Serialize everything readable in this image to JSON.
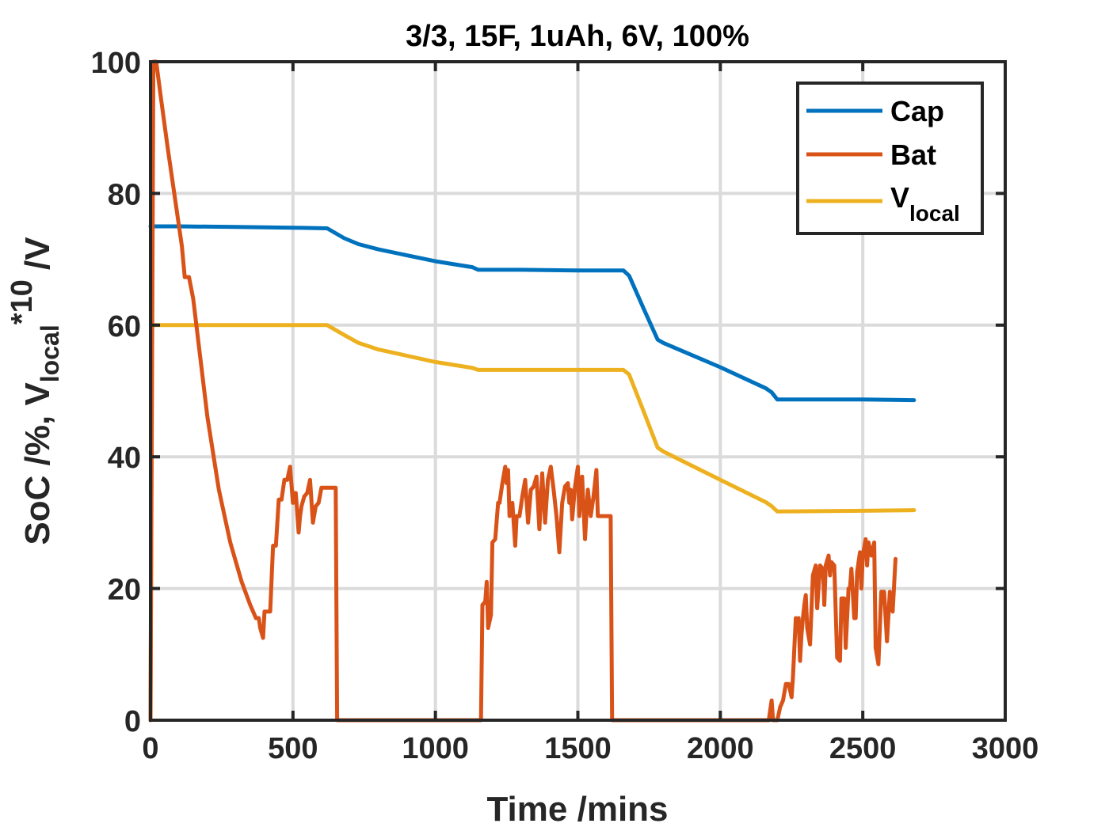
{
  "chart_data": {
    "type": "line",
    "title": "3/3, 15F, 1uAh, 6V, 100%",
    "xlabel": "Time /mins",
    "ylabel": {
      "part1": "SoC /%, V",
      "sub": "local",
      "sup": "*10",
      "part2": " /V"
    },
    "xlim": [
      0,
      3000
    ],
    "ylim": [
      0,
      100
    ],
    "xticks": [
      0,
      500,
      1000,
      1500,
      2000,
      2500,
      3000
    ],
    "yticks": [
      0,
      20,
      40,
      60,
      80,
      100
    ],
    "xtick_labels": [
      "0",
      "500",
      "1000",
      "1500",
      "2000",
      "2500",
      "3000"
    ],
    "ytick_labels": [
      "0",
      "20",
      "40",
      "60",
      "80",
      "100"
    ],
    "grid": true,
    "legend_position": "top-right",
    "series": [
      {
        "name": "Cap",
        "color": "#0072BD",
        "points": [
          [
            0,
            75
          ],
          [
            100,
            75
          ],
          [
            300,
            74.9
          ],
          [
            500,
            74.8
          ],
          [
            620,
            74.7
          ],
          [
            680,
            73.2
          ],
          [
            730,
            72.3
          ],
          [
            800,
            71.5
          ],
          [
            1000,
            69.7
          ],
          [
            1130,
            68.8
          ],
          [
            1150,
            68.4
          ],
          [
            1300,
            68.4
          ],
          [
            1500,
            68.3
          ],
          [
            1660,
            68.3
          ],
          [
            1680,
            67.5
          ],
          [
            1730,
            62.6
          ],
          [
            1780,
            57.8
          ],
          [
            1800,
            57.3
          ],
          [
            2000,
            53.6
          ],
          [
            2160,
            50.4
          ],
          [
            2180,
            49.8
          ],
          [
            2200,
            48.7
          ],
          [
            2500,
            48.7
          ],
          [
            2680,
            48.6
          ]
        ]
      },
      {
        "name": "Bat",
        "color": "#D95319",
        "points": [
          [
            0,
            0
          ],
          [
            10,
            100
          ],
          [
            20,
            100
          ],
          [
            35,
            95
          ],
          [
            60,
            87
          ],
          [
            100,
            75
          ],
          [
            110,
            72
          ],
          [
            120,
            67.3
          ],
          [
            135,
            67.3
          ],
          [
            150,
            64
          ],
          [
            175,
            55
          ],
          [
            200,
            46
          ],
          [
            240,
            35
          ],
          [
            280,
            27
          ],
          [
            320,
            21
          ],
          [
            350,
            17.5
          ],
          [
            370,
            15.5
          ],
          [
            380,
            15.5
          ],
          [
            385,
            14
          ],
          [
            395,
            12.5
          ],
          [
            400,
            16.5
          ],
          [
            410,
            16.5
          ],
          [
            420,
            16.5
          ],
          [
            430,
            26.5
          ],
          [
            440,
            26.5
          ],
          [
            450,
            33.5
          ],
          [
            460,
            33.5
          ],
          [
            470,
            36.5
          ],
          [
            480,
            36.5
          ],
          [
            490,
            38.5
          ],
          [
            500,
            33
          ],
          [
            505,
            34.5
          ],
          [
            510,
            34.5
          ],
          [
            520,
            28.5
          ],
          [
            525,
            31
          ],
          [
            530,
            32.5
          ],
          [
            540,
            34
          ],
          [
            550,
            34.5
          ],
          [
            560,
            36.5
          ],
          [
            570,
            30
          ],
          [
            580,
            32.5
          ],
          [
            590,
            33
          ],
          [
            600,
            35.3
          ],
          [
            640,
            35.3
          ],
          [
            650,
            35.3
          ],
          [
            655,
            0
          ],
          [
            1160,
            0
          ],
          [
            1165,
            17.5
          ],
          [
            1175,
            18
          ],
          [
            1180,
            21
          ],
          [
            1185,
            14
          ],
          [
            1195,
            16
          ],
          [
            1200,
            27
          ],
          [
            1210,
            27.5
          ],
          [
            1220,
            33
          ],
          [
            1225,
            33
          ],
          [
            1235,
            36
          ],
          [
            1245,
            38.5
          ],
          [
            1250,
            36
          ],
          [
            1255,
            38
          ],
          [
            1260,
            31
          ],
          [
            1270,
            33
          ],
          [
            1280,
            26.5
          ],
          [
            1285,
            31
          ],
          [
            1295,
            31
          ],
          [
            1305,
            34
          ],
          [
            1315,
            36.5
          ],
          [
            1325,
            30
          ],
          [
            1335,
            35
          ],
          [
            1345,
            35.5
          ],
          [
            1355,
            37
          ],
          [
            1365,
            29
          ],
          [
            1375,
            37.5
          ],
          [
            1385,
            30
          ],
          [
            1395,
            36.5
          ],
          [
            1405,
            38.5
          ],
          [
            1415,
            35
          ],
          [
            1425,
            31
          ],
          [
            1435,
            25.5
          ],
          [
            1445,
            33
          ],
          [
            1455,
            35.5
          ],
          [
            1465,
            36
          ],
          [
            1470,
            33
          ],
          [
            1475,
            35
          ],
          [
            1480,
            30.5
          ],
          [
            1485,
            33
          ],
          [
            1490,
            35.5
          ],
          [
            1500,
            38.5
          ],
          [
            1505,
            31
          ],
          [
            1515,
            37
          ],
          [
            1525,
            27.5
          ],
          [
            1535,
            35
          ],
          [
            1545,
            31
          ],
          [
            1555,
            34
          ],
          [
            1565,
            38
          ],
          [
            1570,
            31
          ],
          [
            1580,
            31
          ],
          [
            1600,
            31
          ],
          [
            1615,
            31
          ],
          [
            1620,
            0
          ],
          [
            2170,
            0
          ],
          [
            2180,
            3
          ],
          [
            2185,
            0
          ],
          [
            2200,
            0
          ],
          [
            2210,
            2
          ],
          [
            2220,
            3
          ],
          [
            2230,
            5.5
          ],
          [
            2240,
            5.5
          ],
          [
            2250,
            3.5
          ],
          [
            2255,
            6.5
          ],
          [
            2265,
            15.5
          ],
          [
            2270,
            14
          ],
          [
            2275,
            15.5
          ],
          [
            2280,
            9
          ],
          [
            2285,
            13
          ],
          [
            2290,
            15.5
          ],
          [
            2295,
            17.5
          ],
          [
            2300,
            19
          ],
          [
            2305,
            14
          ],
          [
            2315,
            11.5
          ],
          [
            2325,
            22
          ],
          [
            2335,
            23.5
          ],
          [
            2340,
            17
          ],
          [
            2350,
            23.5
          ],
          [
            2360,
            23
          ],
          [
            2365,
            17.5
          ],
          [
            2370,
            23.5
          ],
          [
            2380,
            25
          ],
          [
            2385,
            22
          ],
          [
            2390,
            24
          ],
          [
            2400,
            23.5
          ],
          [
            2410,
            9.5
          ],
          [
            2420,
            9
          ],
          [
            2425,
            18.5
          ],
          [
            2435,
            18.5
          ],
          [
            2440,
            11
          ],
          [
            2450,
            20
          ],
          [
            2455,
            20
          ],
          [
            2460,
            23
          ],
          [
            2470,
            15.5
          ],
          [
            2475,
            15.5
          ],
          [
            2480,
            22.5
          ],
          [
            2490,
            25.5
          ],
          [
            2495,
            20
          ],
          [
            2500,
            25
          ],
          [
            2510,
            27.5
          ],
          [
            2515,
            23.5
          ],
          [
            2520,
            27
          ],
          [
            2530,
            25
          ],
          [
            2540,
            27
          ],
          [
            2545,
            11
          ],
          [
            2555,
            8.5
          ],
          [
            2565,
            19.5
          ],
          [
            2575,
            19.5
          ],
          [
            2585,
            12
          ],
          [
            2595,
            19.5
          ],
          [
            2605,
            16.5
          ],
          [
            2615,
            24.5
          ]
        ]
      },
      {
        "name": "V",
        "name_sub": "local",
        "color": "#EDB120",
        "points": [
          [
            0,
            0
          ],
          [
            5,
            60
          ],
          [
            100,
            60
          ],
          [
            300,
            60
          ],
          [
            500,
            60
          ],
          [
            620,
            60
          ],
          [
            680,
            58.5
          ],
          [
            730,
            57.3
          ],
          [
            800,
            56.3
          ],
          [
            1000,
            54.4
          ],
          [
            1130,
            53.5
          ],
          [
            1150,
            53.2
          ],
          [
            1300,
            53.2
          ],
          [
            1500,
            53.2
          ],
          [
            1660,
            53.2
          ],
          [
            1680,
            52.5
          ],
          [
            1730,
            47
          ],
          [
            1780,
            41.4
          ],
          [
            1800,
            40.8
          ],
          [
            2000,
            36.5
          ],
          [
            2160,
            33.1
          ],
          [
            2180,
            32.5
          ],
          [
            2200,
            31.7
          ],
          [
            2500,
            31.8
          ],
          [
            2680,
            31.9
          ]
        ]
      }
    ]
  }
}
